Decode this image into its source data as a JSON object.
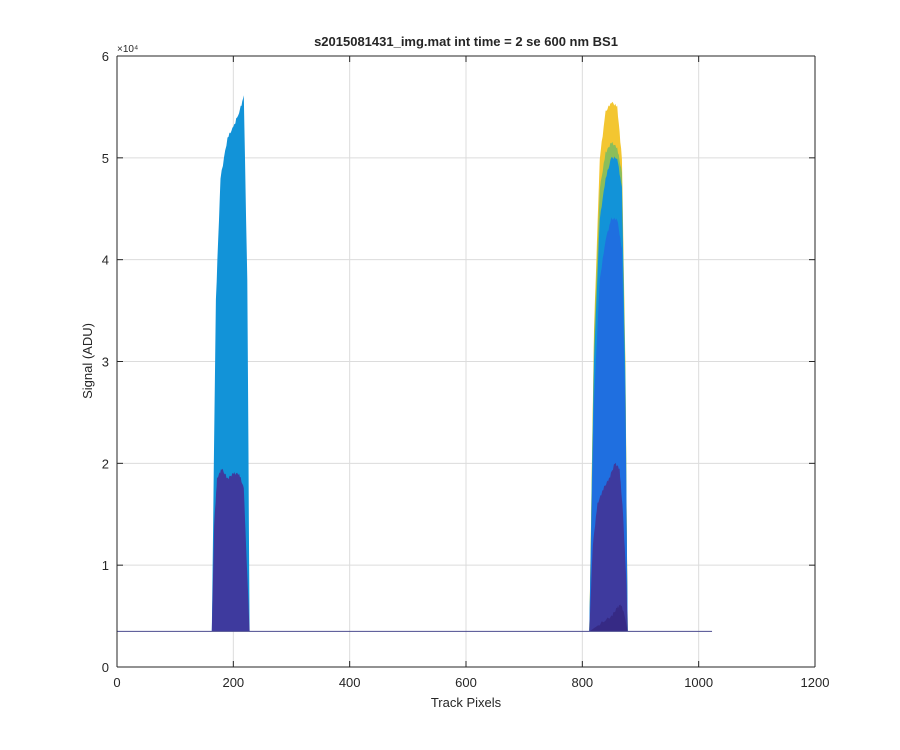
{
  "chart_data": {
    "type": "area",
    "title": "s2015081431_img.mat int time = 2 se  600 nm BS1",
    "xlabel": "Track Pixels",
    "ylabel": "Signal (ADU)",
    "xlim": [
      0,
      1200
    ],
    "ylim": [
      0,
      60000
    ],
    "xticks": [
      0,
      200,
      400,
      600,
      800,
      1000,
      1200
    ],
    "xtick_labels": [
      "0",
      "200",
      "400",
      "600",
      "800",
      "1000",
      "1200"
    ],
    "yticks": [
      0,
      10000,
      20000,
      30000,
      40000,
      50000,
      60000
    ],
    "ytick_labels": [
      "0",
      "1",
      "2",
      "3",
      "4",
      "5",
      "6"
    ],
    "y_exponent_label": "×10⁴",
    "grid": true,
    "baseline": 3500,
    "data_range_x": [
      0,
      1023
    ],
    "series": [
      {
        "color": "#F3C631",
        "peaks": [
          {
            "x": [
              812,
              820,
              830,
              840,
              850,
              860,
              868,
              874,
              878
            ],
            "y": [
              3500,
              33000,
              50000,
              54500,
              55500,
              55000,
              50000,
              30000,
              3500
            ]
          }
        ]
      },
      {
        "color": "#8CBE5A",
        "peaks": [
          {
            "x": [
              812,
              820,
              830,
              840,
              850,
              860,
              868,
              874,
              878
            ],
            "y": [
              3500,
              32000,
              47000,
              50500,
              51500,
              51000,
              48500,
              29000,
              3500
            ]
          }
        ]
      },
      {
        "color": "#1293D8",
        "peaks": [
          {
            "x": [
              163,
              170,
              178,
              190,
              200,
              210,
              218,
              224,
              228
            ],
            "y": [
              3500,
              36000,
              48000,
              52000,
              53000,
              54500,
              56000,
              38000,
              3500
            ]
          },
          {
            "x": [
              812,
              820,
              830,
              840,
              850,
              860,
              868,
              874,
              878
            ],
            "y": [
              3500,
              30000,
              44000,
              48000,
              50000,
              50000,
              47000,
              28000,
              3500
            ]
          }
        ]
      },
      {
        "color": "#1F6FE0",
        "peaks": [
          {
            "x": [
              812,
              820,
              830,
              840,
              850,
              860,
              868,
              874,
              878
            ],
            "y": [
              3500,
              26000,
              38000,
              42000,
              44000,
              44000,
              41000,
              25000,
              3500
            ]
          }
        ]
      },
      {
        "color": "#3E3A9E",
        "peaks": [
          {
            "x": [
              163,
              167,
              172,
              180,
              190,
              200,
              210,
              218,
              224,
              228
            ],
            "y": [
              3500,
              14000,
              18500,
              19500,
              18500,
              19000,
              19000,
              17500,
              9000,
              3500
            ]
          },
          {
            "x": [
              812,
              818,
              826,
              836,
              846,
              856,
              864,
              870,
              876,
              878
            ],
            "y": [
              3500,
              12000,
              16000,
              17500,
              18500,
              20000,
              19500,
              15000,
              8000,
              3500
            ]
          }
        ]
      },
      {
        "color": "#362A85",
        "peaks": [
          {
            "x": [
              812,
              830,
              850,
              860,
              866,
              872,
              878
            ],
            "y": [
              3500,
              4200,
              5000,
              5800,
              6200,
              5200,
              3500
            ]
          }
        ]
      }
    ]
  }
}
